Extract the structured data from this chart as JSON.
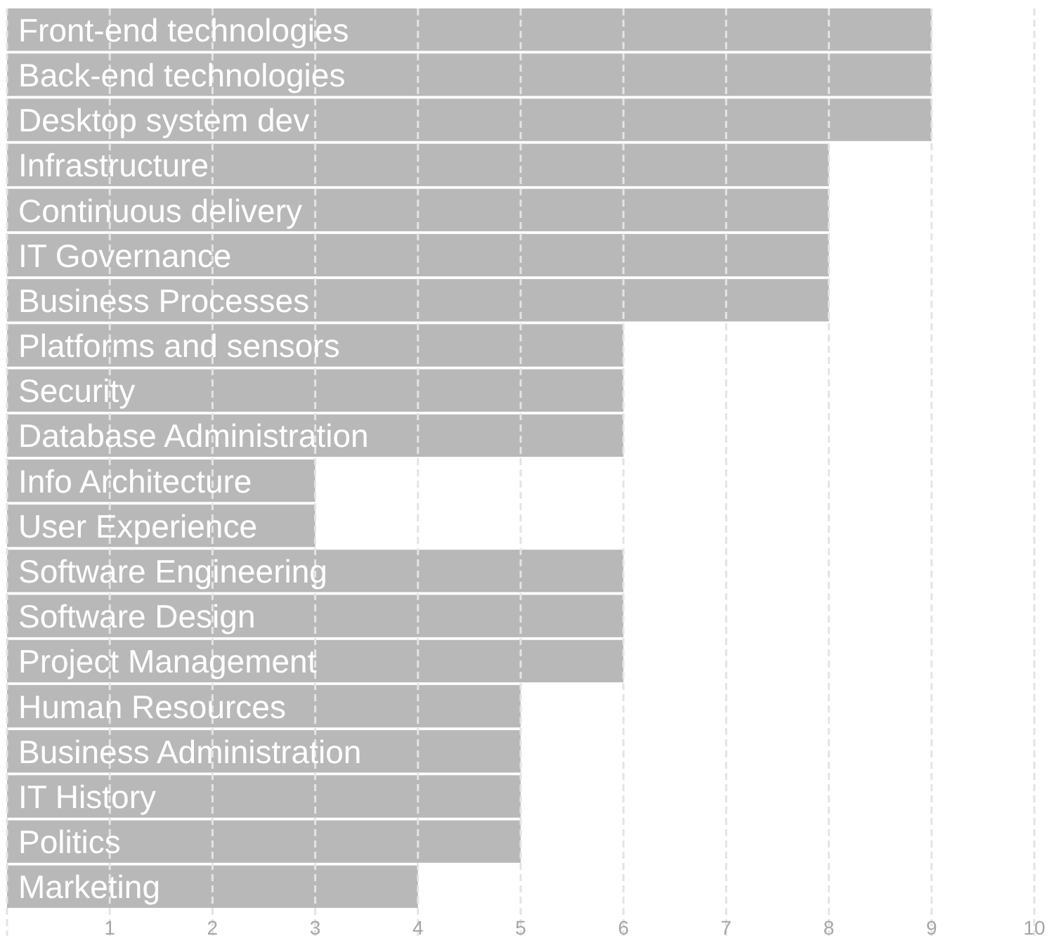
{
  "chart_data": {
    "type": "bar",
    "orientation": "horizontal",
    "categories": [
      "Front-end technologies",
      "Back-end technologies",
      "Desktop system dev",
      "Infrastructure",
      "Continuous delivery",
      "IT Governance",
      "Business Processes",
      "Platforms and sensors",
      "Security",
      "Database Administration",
      "Info Architecture",
      "User Experience",
      "Software Engineering",
      "Software Design",
      "Project Management",
      "Human Resources",
      "Business Administration",
      "IT History",
      "Politics",
      "Marketing"
    ],
    "values": [
      9,
      9,
      9,
      8,
      8,
      8,
      8,
      6,
      6,
      6,
      3,
      3,
      6,
      6,
      6,
      5,
      5,
      5,
      5,
      4
    ],
    "color": "#b8b8b8",
    "xlim": [
      0,
      10
    ],
    "xticks": [
      {
        "value": 0,
        "label": null
      },
      1,
      2,
      3,
      4,
      5,
      6,
      7,
      8,
      9,
      10
    ],
    "grid": "x"
  }
}
